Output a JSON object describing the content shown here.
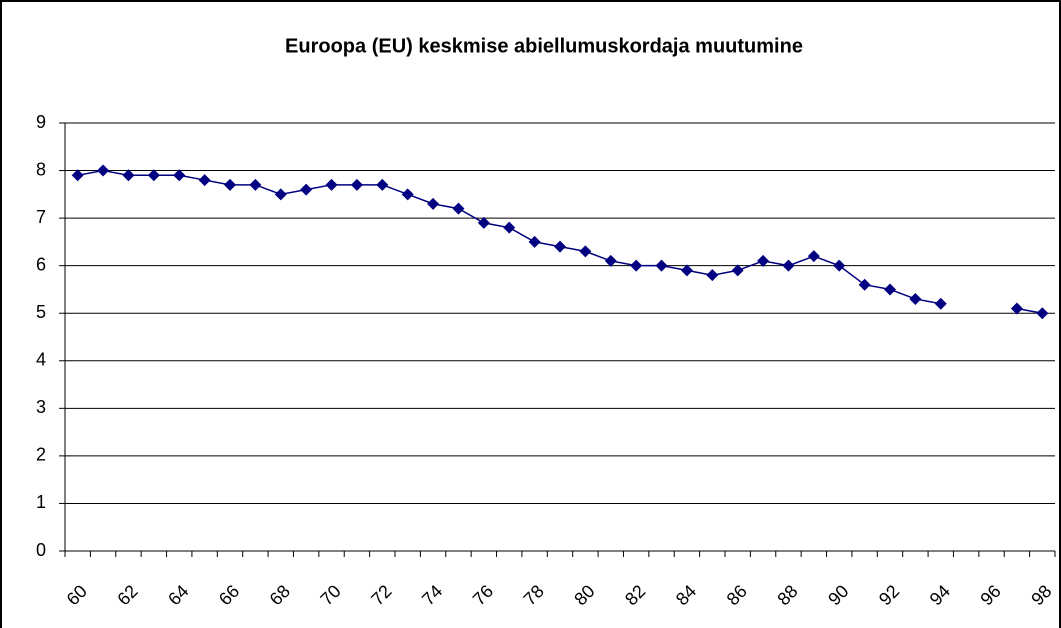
{
  "chart_data": {
    "type": "line",
    "title": "Euroopa (EU) keskmise abiellumuskordaja muutumine",
    "categories": [
      "60",
      null,
      "62",
      null,
      "64",
      null,
      "66",
      null,
      "68",
      null,
      "70",
      null,
      "72",
      null,
      "74",
      null,
      "76",
      null,
      "78",
      null,
      "80",
      null,
      "82",
      null,
      "84",
      null,
      "86",
      null,
      "88",
      null,
      "90",
      null,
      "92",
      null,
      "94",
      null,
      "96",
      null,
      "98"
    ],
    "series": [
      {
        "color": "#000080",
        "values": [
          7.9,
          8.0,
          7.9,
          7.9,
          7.9,
          7.8,
          7.7,
          7.7,
          7.5,
          7.6,
          7.7,
          7.7,
          7.7,
          7.5,
          7.3,
          7.2,
          6.9,
          6.8,
          6.5,
          6.4,
          6.3,
          6.1,
          6.0,
          6.0,
          5.9,
          5.8,
          5.9,
          6.1,
          6.0,
          6.2,
          6.0,
          5.6,
          5.5,
          5.3,
          5.2,
          null,
          null,
          5.1,
          5.0
        ]
      }
    ],
    "ylim": [
      0,
      9
    ],
    "yticks": [
      0,
      1,
      2,
      3,
      4,
      5,
      6,
      7,
      8,
      9
    ],
    "grid": true
  }
}
